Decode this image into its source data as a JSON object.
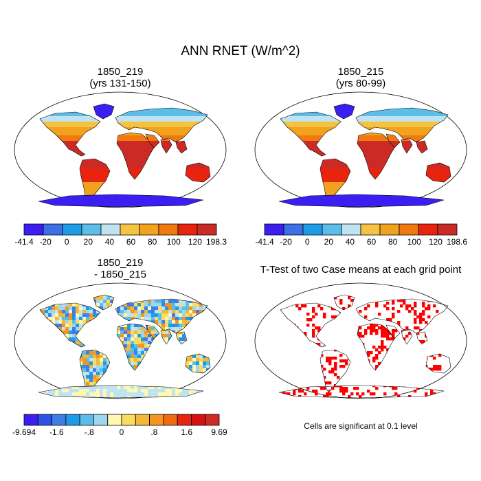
{
  "title": "ANN RNET (W/m^2)",
  "panels": [
    {
      "id": "a",
      "title_line1": "1850_219",
      "title_line2": "(yrs 131-150)"
    },
    {
      "id": "b",
      "title_line1": "1850_215",
      "title_line2": "(yrs 80-99)"
    },
    {
      "id": "c",
      "title_line1": "1850_219",
      "title_line2": "- 1850_215"
    },
    {
      "id": "d",
      "title_line1": "T-Test of two Case means at each grid point"
    }
  ],
  "colorbars": {
    "a": {
      "labels": [
        "-41.4",
        "-20",
        "0",
        "20",
        "40",
        "60",
        "80",
        "100",
        "120",
        "198.3"
      ],
      "colors": [
        "#3b1ff2",
        "#3d6fe6",
        "#1e9be8",
        "#5bbde8",
        "#bfe3f0",
        "#f5c242",
        "#f3a21e",
        "#f07a10",
        "#e8240f",
        "#cc2b25"
      ]
    },
    "b": {
      "labels": [
        "-41.4",
        "-20",
        "0",
        "20",
        "40",
        "60",
        "80",
        "100",
        "120",
        "198.6"
      ],
      "colors": [
        "#3b1ff2",
        "#3d6fe6",
        "#1e9be8",
        "#5bbde8",
        "#bfe3f0",
        "#f5c242",
        "#f3a21e",
        "#f07a10",
        "#e8240f",
        "#cc2b25"
      ]
    },
    "c": {
      "labels": [
        "-9.694",
        "-1.6",
        "-.8",
        "0",
        ".8",
        "1.6",
        "9.69"
      ],
      "colors": [
        "#3b1ff2",
        "#2d52e6",
        "#3d7ee8",
        "#1e9be8",
        "#5bbde8",
        "#9fd6ef",
        "#fff8b0",
        "#f8dd62",
        "#f3b73a",
        "#f39521",
        "#f06a12",
        "#e8240f",
        "#d81010",
        "#cc2b25"
      ]
    }
  },
  "significance_note": "Cells are significant at 0.1 level"
}
